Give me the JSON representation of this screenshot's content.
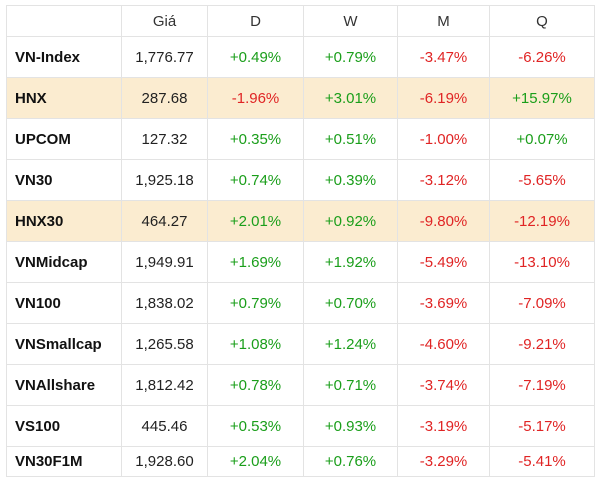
{
  "table": {
    "headers": [
      "",
      "Giá",
      "D",
      "W",
      "M",
      "Q"
    ],
    "rows": [
      {
        "name": "VN-Index",
        "price": "1,776.77",
        "d": "+0.49%",
        "w": "+0.79%",
        "m": "-3.47%",
        "q": "-6.26%",
        "highlight": false
      },
      {
        "name": "HNX",
        "price": "287.68",
        "d": "-1.96%",
        "w": "+3.01%",
        "m": "-6.19%",
        "q": "+15.97%",
        "highlight": true
      },
      {
        "name": "UPCOM",
        "price": "127.32",
        "d": "+0.35%",
        "w": "+0.51%",
        "m": "-1.00%",
        "q": "+0.07%",
        "highlight": false
      },
      {
        "name": "VN30",
        "price": "1,925.18",
        "d": "+0.74%",
        "w": "+0.39%",
        "m": "-3.12%",
        "q": "-5.65%",
        "highlight": false
      },
      {
        "name": "HNX30",
        "price": "464.27",
        "d": "+2.01%",
        "w": "+0.92%",
        "m": "-9.80%",
        "q": "-12.19%",
        "highlight": true
      },
      {
        "name": "VNMidcap",
        "price": "1,949.91",
        "d": "+1.69%",
        "w": "+1.92%",
        "m": "-5.49%",
        "q": "-13.10%",
        "highlight": false
      },
      {
        "name": "VN100",
        "price": "1,838.02",
        "d": "+0.79%",
        "w": "+0.70%",
        "m": "-3.69%",
        "q": "-7.09%",
        "highlight": false
      },
      {
        "name": "VNSmallcap",
        "price": "1,265.58",
        "d": "+1.08%",
        "w": "+1.24%",
        "m": "-4.60%",
        "q": "-9.21%",
        "highlight": false
      },
      {
        "name": "VNAllshare",
        "price": "1,812.42",
        "d": "+0.78%",
        "w": "+0.71%",
        "m": "-3.74%",
        "q": "-7.19%",
        "highlight": false
      },
      {
        "name": "VS100",
        "price": "445.46",
        "d": "+0.53%",
        "w": "+0.93%",
        "m": "-3.19%",
        "q": "-5.17%",
        "highlight": false
      },
      {
        "name": "VN30F1M",
        "price": "1,928.60",
        "d": "+2.04%",
        "w": "+0.76%",
        "m": "-3.29%",
        "q": "-5.41%",
        "highlight": false
      }
    ]
  },
  "colors": {
    "positive": "#1a9e1a",
    "negative": "#e02424",
    "highlight_row": "#fbecd0"
  }
}
